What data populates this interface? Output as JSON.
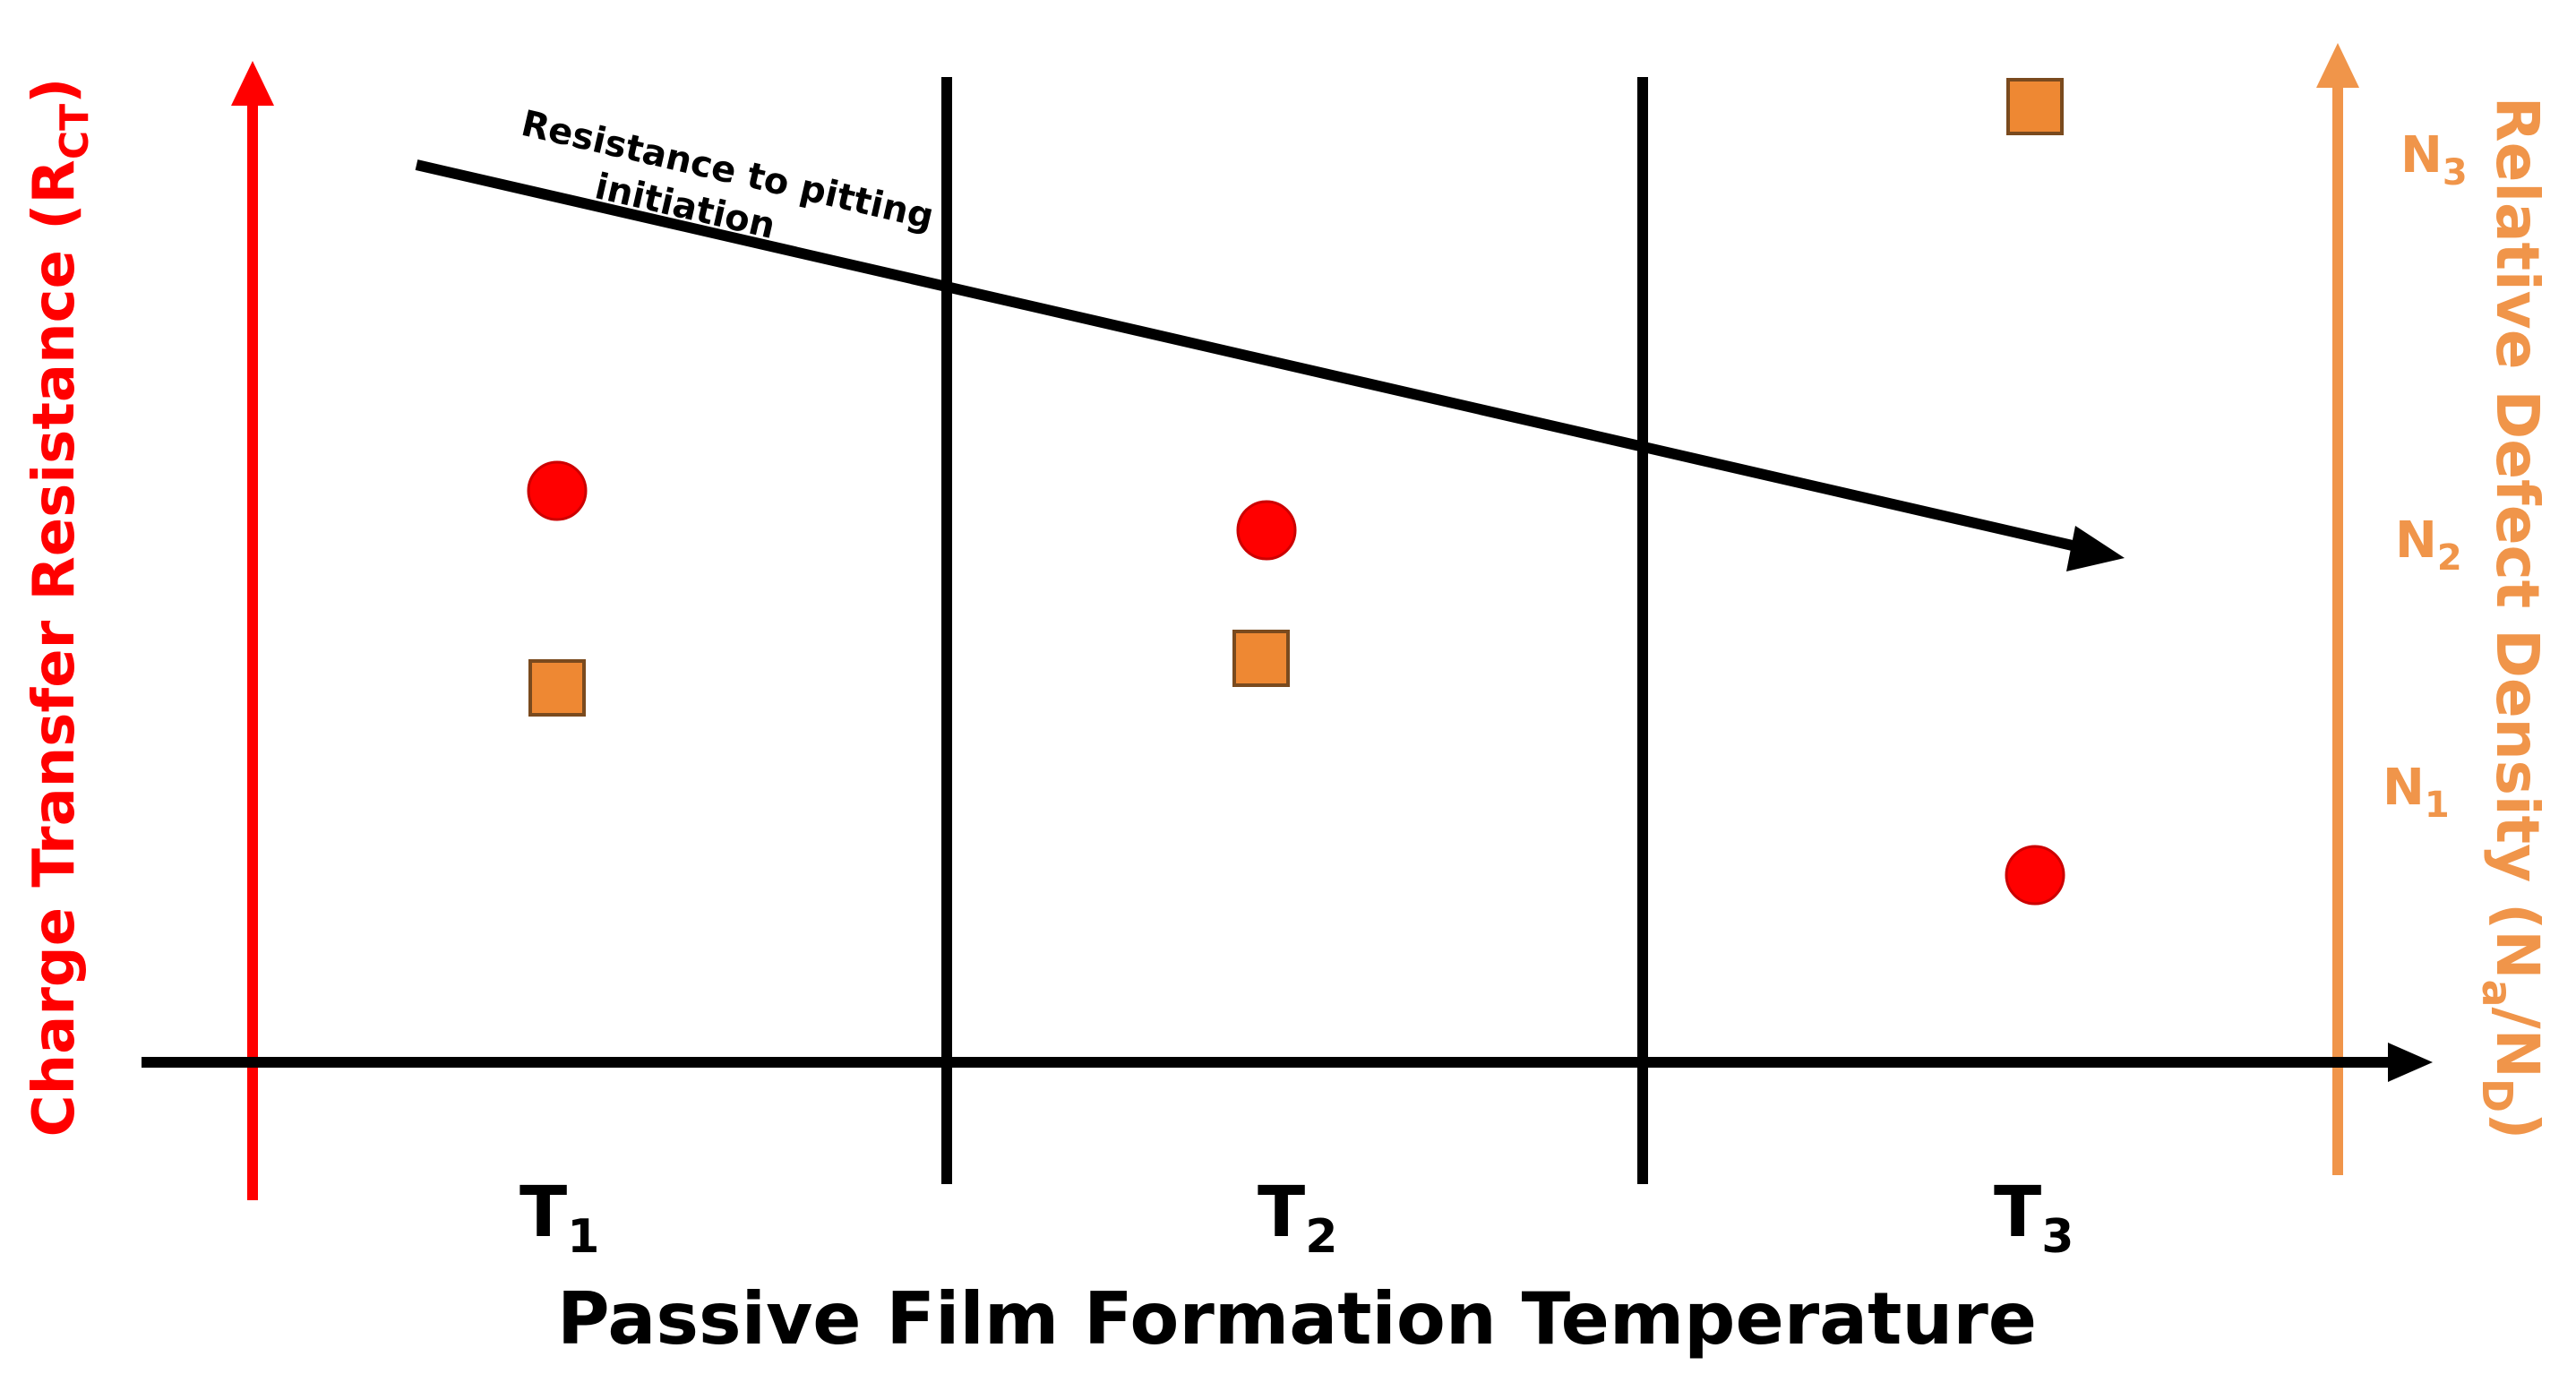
{
  "colors": {
    "charge_axis": "#ff0000",
    "defect_axis": "#f0954a",
    "circle_fill": "#ff0000",
    "square_fill": "#ee8833",
    "square_stroke": "#7a4a1e",
    "circle_stroke": "#cc0000",
    "ink": "#000000"
  },
  "x_axis": {
    "title": "Passive Film Formation Temperature",
    "categories": [
      {
        "base": "T",
        "sub": "1"
      },
      {
        "base": "T",
        "sub": "2"
      },
      {
        "base": "T",
        "sub": "3"
      }
    ]
  },
  "left_axis": {
    "title_main": "Charge Transfer Resistance (R",
    "title_sub": "CT",
    "title_end": ")"
  },
  "right_axis": {
    "title_main": "Relative Defect Density (N",
    "title_sub1": "a",
    "title_mid": "/N",
    "title_sub2": "D",
    "title_end": ")",
    "levels": [
      {
        "base": "N",
        "sub": "3"
      },
      {
        "base": "N",
        "sub": "2"
      },
      {
        "base": "N",
        "sub": "1"
      }
    ]
  },
  "trend_arrow": {
    "label_line1": "Resistance to pitting",
    "label_line2": "initiation"
  },
  "markers": {
    "charge_transfer_resistance": [
      {
        "category": "T1",
        "level": 0.58
      },
      {
        "category": "T2",
        "level": 0.54
      },
      {
        "category": "T3",
        "level": 0.19
      }
    ],
    "relative_defect_density": [
      {
        "category": "T1",
        "level": 0.38
      },
      {
        "category": "T2",
        "level": 0.41
      },
      {
        "category": "T3",
        "level": 0.97
      }
    ]
  }
}
